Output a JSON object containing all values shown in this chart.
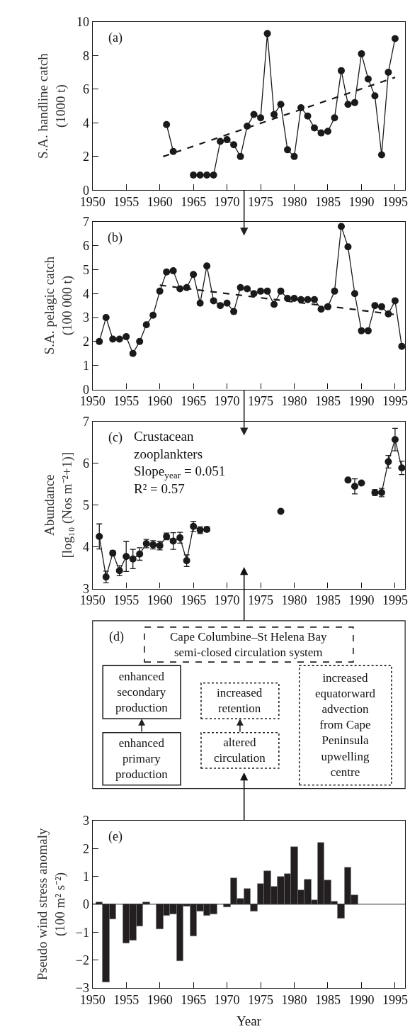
{
  "chart_data": [
    {
      "type": "line",
      "ylabel": "S.A. handline catch\n(1000 t)",
      "annotations": [
        "(a)"
      ],
      "marker": "circle",
      "x": [
        1961,
        1962,
        1963,
        1964,
        1965,
        1966,
        1967,
        1968,
        1969,
        1970,
        1971,
        1972,
        1973,
        1974,
        1975,
        1976,
        1977,
        1978,
        1979,
        1980,
        1981,
        1982,
        1983,
        1984,
        1985,
        1986,
        1987,
        1988,
        1989,
        1990,
        1991,
        1992,
        1993,
        1994,
        1995
      ],
      "series": [
        {
          "color": "#1a1a1a",
          "values": [
            3.9,
            2.3,
            null,
            null,
            0.9,
            0.9,
            0.9,
            0.9,
            2.9,
            3.0,
            2.7,
            2.0,
            3.8,
            4.5,
            4.3,
            9.3,
            4.5,
            5.1,
            2.4,
            2.0,
            4.9,
            4.4,
            3.7,
            3.4,
            3.5,
            4.3,
            7.1,
            5.1,
            5.2,
            8.1,
            6.6,
            5.6,
            2.1,
            7.0,
            9.0
          ]
        },
        {
          "color": "#1a1a1a",
          "x": [
            1960.5,
            1995
          ],
          "values": [
            2.0,
            6.7
          ],
          "marker": "none",
          "line_style": "dashed"
        }
      ],
      "xlim": [
        1950,
        1996.5
      ],
      "ylim": [
        0,
        10
      ],
      "xticks": [
        1950,
        1955,
        1960,
        1965,
        1970,
        1975,
        1980,
        1985,
        1990,
        1995
      ],
      "yticks": [
        0,
        2,
        4,
        6,
        8,
        10
      ]
    },
    {
      "type": "line",
      "ylabel": "S.A. pelagic catch\n(100 000 t)",
      "annotations": [
        "(b)"
      ],
      "marker": "circle",
      "x": [
        1951,
        1952,
        1953,
        1954,
        1955,
        1956,
        1957,
        1958,
        1959,
        1960,
        1961,
        1962,
        1963,
        1964,
        1965,
        1966,
        1967,
        1968,
        1969,
        1970,
        1971,
        1972,
        1973,
        1974,
        1975,
        1976,
        1977,
        1978,
        1979,
        1980,
        1981,
        1982,
        1983,
        1984,
        1985,
        1986,
        1987,
        1988,
        1989,
        1990,
        1991,
        1992,
        1993,
        1994,
        1995,
        1996
      ],
      "series": [
        {
          "color": "#1a1a1a",
          "values": [
            2.0,
            3.0,
            2.1,
            2.1,
            2.2,
            1.5,
            2.0,
            2.7,
            3.1,
            4.1,
            4.9,
            4.95,
            4.2,
            4.25,
            4.8,
            3.6,
            5.15,
            3.7,
            3.5,
            3.6,
            3.25,
            4.25,
            4.2,
            4.0,
            4.1,
            4.1,
            3.55,
            4.1,
            3.8,
            3.8,
            3.75,
            3.75,
            3.75,
            3.35,
            3.45,
            4.1,
            6.8,
            5.95,
            4.0,
            2.45,
            2.45,
            3.5,
            3.45,
            3.15,
            3.7,
            1.8
          ]
        },
        {
          "color": "#1a1a1a",
          "x": [
            1960,
            1995.7
          ],
          "values": [
            4.35,
            3.1
          ],
          "marker": "none",
          "line_style": "dashed"
        }
      ],
      "xlim": [
        1950,
        1996.5
      ],
      "ylim": [
        0,
        7
      ],
      "xticks": [
        1950,
        1955,
        1960,
        1965,
        1970,
        1975,
        1980,
        1985,
        1990,
        1995
      ],
      "yticks": [
        0,
        1,
        2,
        3,
        4,
        5,
        6,
        7
      ]
    },
    {
      "type": "line",
      "ylabel": "Abundance\n[log₁₀ (Nos m⁻²+1)]",
      "annotations": [
        "(c)",
        "Crustacean\nzooplankters\nSlope$_{year}$ = 0.051\nR² = 0.57"
      ],
      "marker": "circle",
      "series": [
        {
          "color": "#1a1a1a",
          "x": [
            1951,
            1952,
            1953,
            1954,
            1955,
            1956,
            1957,
            1958,
            1959,
            1960,
            1961,
            1962,
            1963,
            1964,
            1965,
            1966,
            1967
          ],
          "values": [
            4.25,
            3.28,
            3.85,
            3.43,
            3.77,
            3.71,
            3.83,
            4.08,
            4.05,
            4.03,
            4.25,
            4.14,
            4.22,
            3.67,
            4.49,
            4.4,
            4.42
          ],
          "errors": [
            0.3,
            0.14,
            0.06,
            0.12,
            0.36,
            0.23,
            0.15,
            0.1,
            0.1,
            0.1,
            0.08,
            0.2,
            0.13,
            0.14,
            0.12,
            0.08,
            0.06
          ]
        },
        {
          "color": "#1a1a1a",
          "x": [
            1992,
            1993,
            1994,
            1995,
            1996
          ],
          "values": [
            5.3,
            5.3,
            6.04,
            6.57,
            5.89
          ],
          "errors": [
            0.07,
            0.1,
            0.15,
            0.27,
            0.16
          ]
        },
        {
          "type": "scatter",
          "color": "#1a1a1a",
          "x": [
            1978,
            1988,
            1989,
            1990
          ],
          "values": [
            4.85,
            5.6,
            5.45,
            5.53
          ],
          "errors": [
            null,
            null,
            0.18,
            null
          ]
        }
      ],
      "xlim": [
        1950,
        1996.5
      ],
      "ylim": [
        3,
        7
      ],
      "xticks": [
        1950,
        1955,
        1960,
        1965,
        1970,
        1975,
        1980,
        1985,
        1990,
        1995
      ],
      "yticks": [
        3,
        4,
        5,
        6,
        7
      ]
    },
    {
      "type": "other",
      "annotations": [
        "(d)",
        "Cape Columbine–St Helena Bay\nsemi-closed circulation system",
        "enhanced\nsecondary\nproduction",
        "enhanced\nprimary\nproduction",
        "increased\nretention",
        "altered\ncirculation",
        "increased\nequatorward\nadvection\nfrom Cape\nPeninsula\nupwelling\ncentre"
      ]
    },
    {
      "type": "bar",
      "ylabel": "Pseudo wind stress anomaly\n(100 m² s⁻²)",
      "xlabel": "Year",
      "annotations": [
        "(e)"
      ],
      "x": [
        1951,
        1952,
        1953,
        1954,
        1955,
        1956,
        1957,
        1958,
        1959,
        1960,
        1961,
        1962,
        1963,
        1964,
        1965,
        1966,
        1967,
        1968,
        1969,
        1970,
        1971,
        1972,
        1973,
        1974,
        1975,
        1976,
        1977,
        1978,
        1979,
        1980,
        1981,
        1982,
        1983,
        1984,
        1985,
        1986,
        1987,
        1988,
        1989
      ],
      "series": [
        {
          "color": "#231f20",
          "values": [
            0.08,
            -2.8,
            -0.55,
            null,
            -1.4,
            -1.3,
            -0.8,
            0.08,
            null,
            -0.9,
            -0.4,
            -0.35,
            -2.05,
            -0.07,
            -1.15,
            -0.25,
            -0.4,
            -0.35,
            null,
            -0.1,
            0.93,
            0.2,
            0.56,
            -0.25,
            0.74,
            1.2,
            0.63,
            0.99,
            1.09,
            2.05,
            0.5,
            0.9,
            0.16,
            2.22,
            0.85,
            0.1,
            -0.5,
            1.31,
            0.34
          ]
        }
      ],
      "ref_lines": [
        {
          "axis": "y",
          "value": 0,
          "color": "#000000"
        }
      ],
      "xlim": [
        1950,
        1996.5
      ],
      "ylim": [
        -3,
        3
      ],
      "xticks": [
        1950,
        1955,
        1960,
        1965,
        1970,
        1975,
        1980,
        1985,
        1990,
        1995
      ],
      "yticks": [
        -3,
        -2,
        -1,
        0,
        1,
        2,
        3
      ]
    }
  ]
}
